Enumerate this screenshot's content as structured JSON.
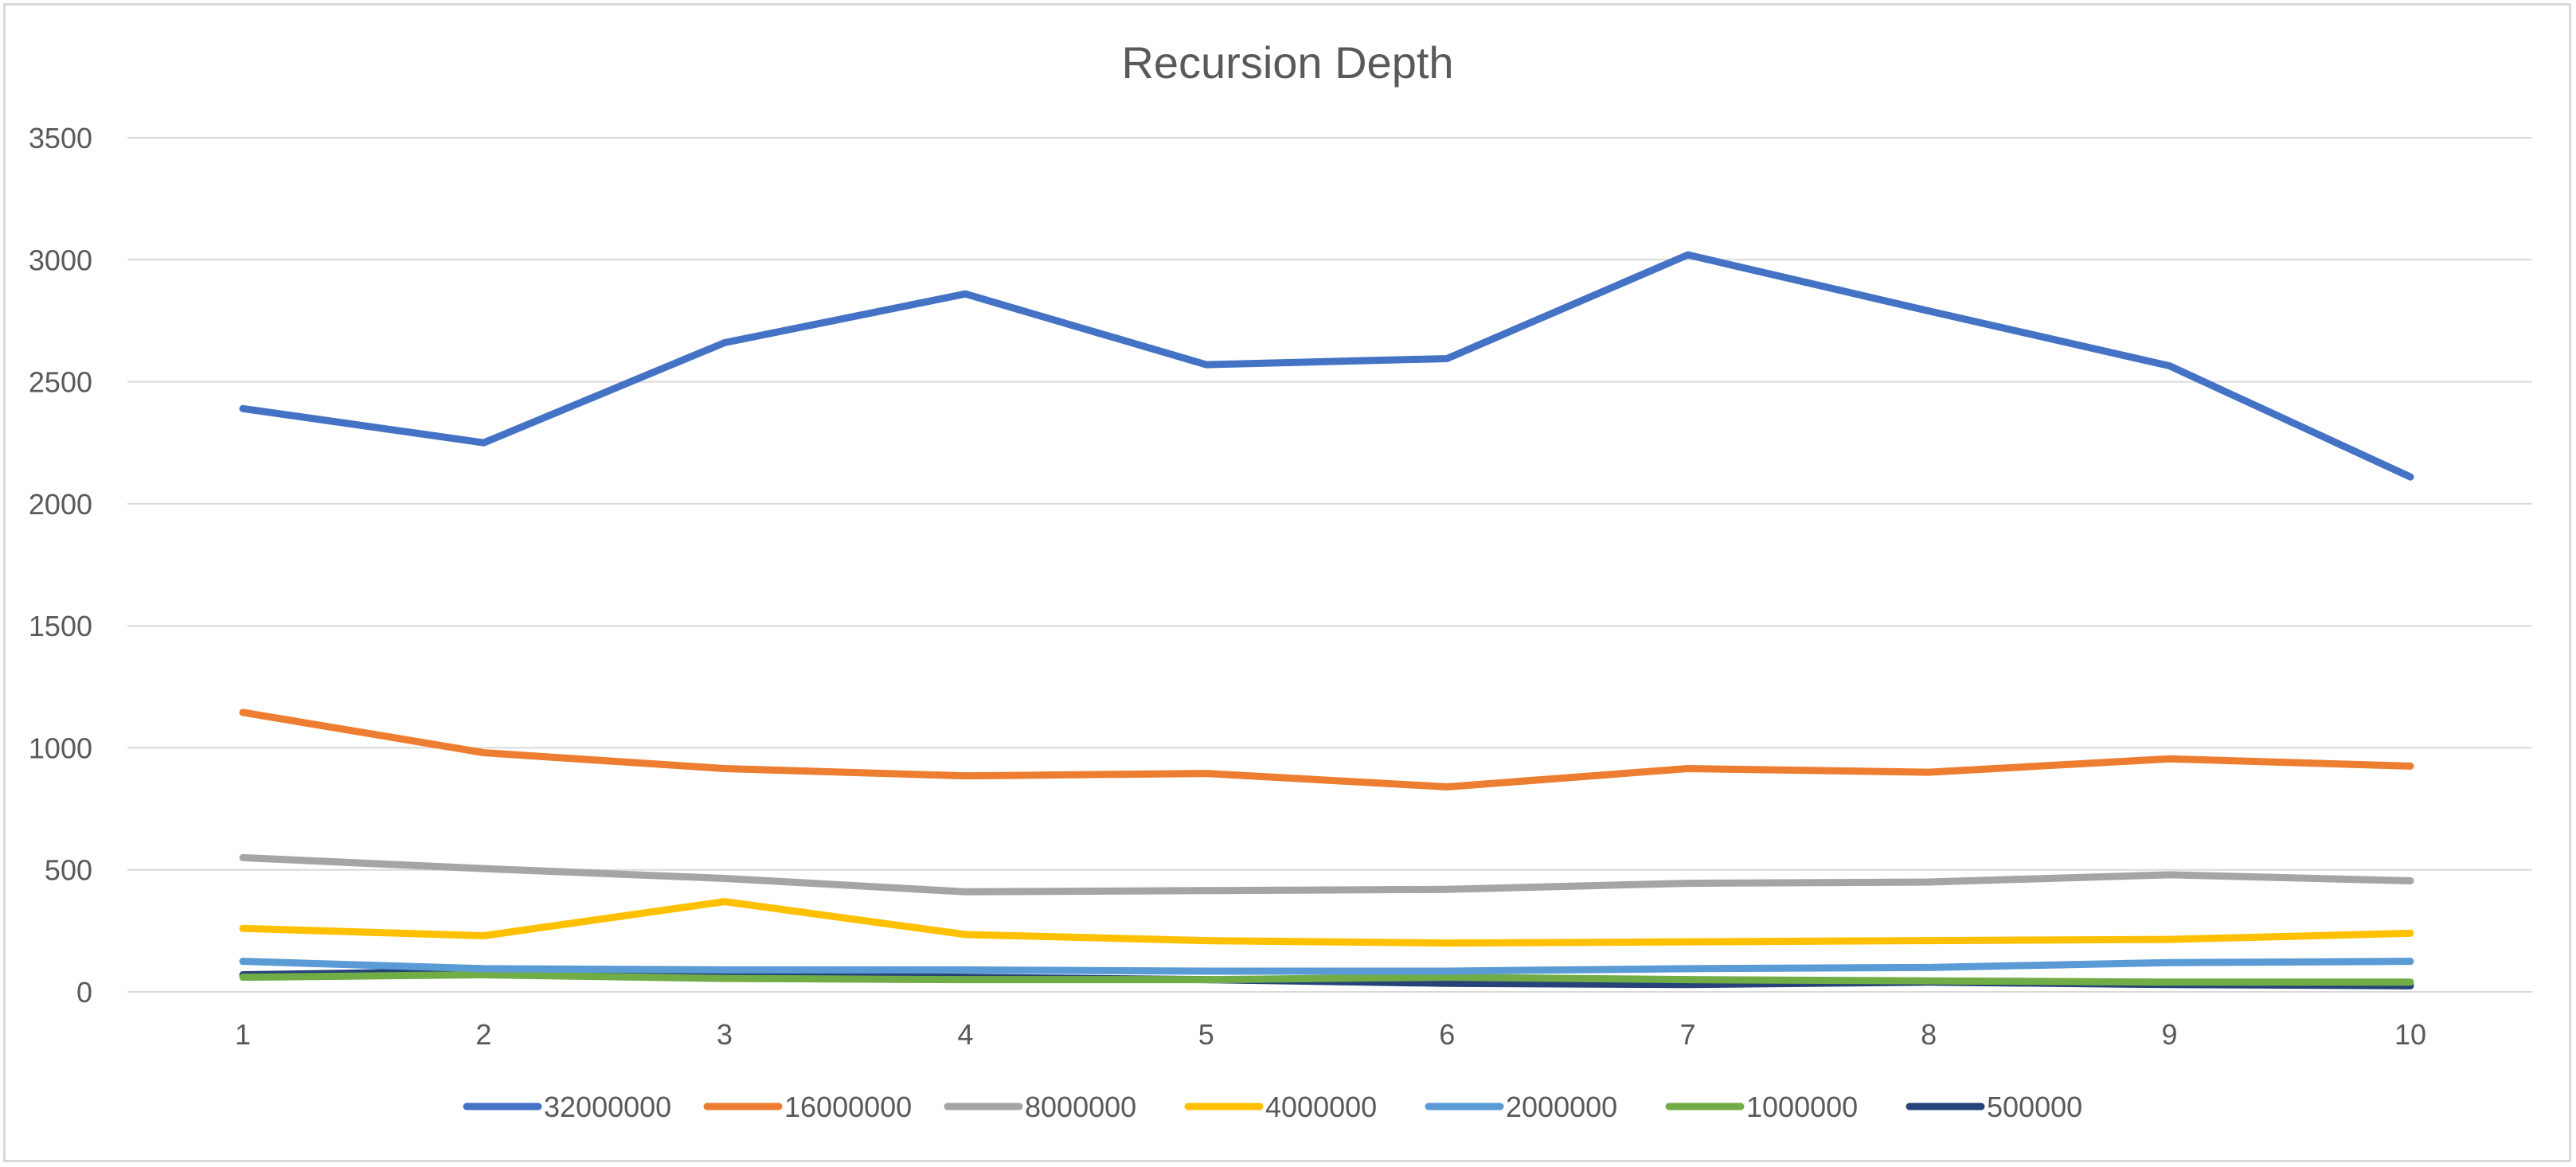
{
  "chart_data": {
    "type": "line",
    "title": "Recursion Depth",
    "xlabel": "",
    "ylabel": "",
    "categories": [
      "1",
      "2",
      "3",
      "4",
      "5",
      "6",
      "7",
      "8",
      "9",
      "10"
    ],
    "ylim": [
      0,
      3500
    ],
    "yticks": [
      0,
      500,
      1000,
      1500,
      2000,
      2500,
      3000,
      3500
    ],
    "ytick_labels": [
      "0",
      "500",
      "1000",
      "1500",
      "2000",
      "2500",
      "3000",
      "3500"
    ],
    "grid": true,
    "legend_position": "bottom",
    "series": [
      {
        "name": "32000000",
        "color": "#4472C4",
        "values": [
          2390,
          2250,
          2660,
          2860,
          2570,
          2595,
          3020,
          2790,
          2565,
          2110
        ]
      },
      {
        "name": "16000000",
        "color": "#ED7D31",
        "values": [
          1145,
          980,
          915,
          885,
          895,
          840,
          915,
          900,
          955,
          925
        ]
      },
      {
        "name": "8000000",
        "color": "#A5A5A5",
        "values": [
          550,
          505,
          465,
          410,
          415,
          420,
          445,
          450,
          480,
          455
        ]
      },
      {
        "name": "4000000",
        "color": "#FFC000",
        "values": [
          260,
          230,
          370,
          235,
          210,
          200,
          205,
          210,
          215,
          240
        ]
      },
      {
        "name": "2000000",
        "color": "#5B9BD5",
        "values": [
          125,
          95,
          90,
          90,
          85,
          85,
          95,
          100,
          120,
          125
        ]
      },
      {
        "name": "1000000",
        "color": "#70AD47",
        "values": [
          60,
          70,
          55,
          50,
          50,
          60,
          50,
          45,
          40,
          40
        ]
      },
      {
        "name": "500000",
        "color": "#264478",
        "values": [
          70,
          85,
          70,
          60,
          50,
          35,
          30,
          40,
          30,
          25
        ]
      }
    ]
  }
}
